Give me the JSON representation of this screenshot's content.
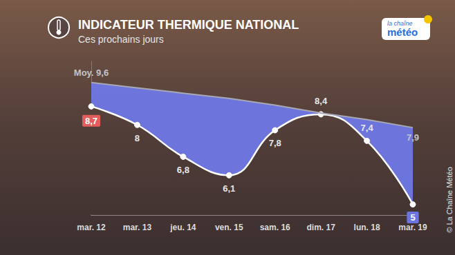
{
  "chart_data": {
    "type": "line",
    "title": "INDICATEUR THERMIQUE NATIONAL",
    "subtitle": "Ces prochains jours",
    "categories": [
      "mar. 12",
      "mar. 13",
      "jeu. 14",
      "ven. 15",
      "sam. 16",
      "dim. 17",
      "lun. 18",
      "mar. 19"
    ],
    "series": [
      {
        "color": "#a8a8b4",
        "line_style": "solid",
        "values": [
          9.6,
          9.4,
          9.2,
          9.0,
          8.75,
          8.45,
          8.2,
          7.9
        ],
        "value_labels": [
          "Moy. 9,6",
          null,
          null,
          null,
          null,
          null,
          null,
          "7,9"
        ]
      },
      {
        "color": "#ffffff",
        "marker": "circle",
        "line_style": "smooth",
        "values": [
          8.7,
          8,
          6.8,
          6.1,
          7.8,
          8.4,
          7.4,
          5
        ],
        "value_labels": [
          "8,7",
          "8",
          "6,8",
          "6,1",
          "7,8",
          "8,4",
          "7,4",
          "5"
        ]
      }
    ],
    "ylim": [
      4.6,
      10.4
    ],
    "grid": false,
    "tick_labels": "x",
    "data_labels": true,
    "annotations": [
      "la chaîne",
      "météo",
      "© La Chaîne Météo"
    ]
  }
}
